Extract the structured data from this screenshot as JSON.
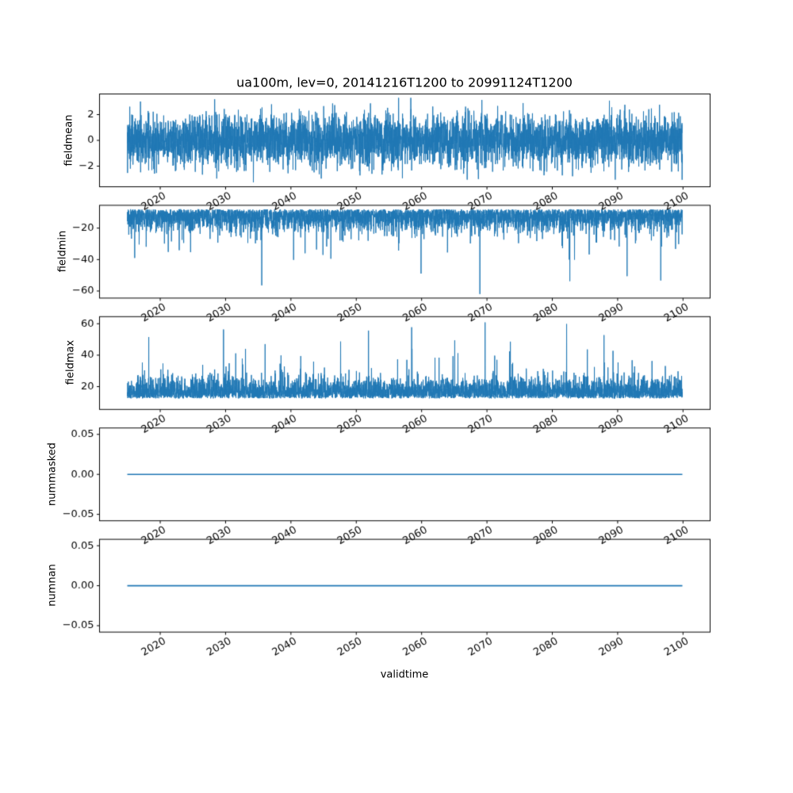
{
  "figure": {
    "background": "#ffffff",
    "line_color": "#1f77b4",
    "frame_color": "#000000",
    "text_color": "#000000"
  },
  "chart_data": {
    "type": "line",
    "title": "ua100m, lev=0, 20141216T1200 to 20991124T1200",
    "xlabel": "validtime",
    "x_range": [
      2014.96,
      2099.9
    ],
    "xlim": [
      2010.71,
      2104.15
    ],
    "xticks": [
      2020,
      2030,
      2040,
      2050,
      2060,
      2070,
      2080,
      2090,
      2100
    ],
    "xtick_labels": [
      "2020",
      "2030",
      "2040",
      "2050",
      "2060",
      "2070",
      "2080",
      "2090",
      "2100"
    ],
    "xtick_rotation": 30,
    "n_points": 4500,
    "legend": "none",
    "grid": false,
    "subplots": [
      {
        "ylabel": "fieldmean",
        "ylim": [
          -3.6,
          3.6
        ],
        "yticks": [
          -2,
          0,
          2
        ],
        "ytick_labels": [
          "−2",
          "0",
          "2"
        ],
        "series": {
          "kind": "gaussian",
          "mean": 0,
          "std": 1.0,
          "clip": [
            -3.3,
            3.3
          ]
        }
      },
      {
        "ylabel": "fieldmin",
        "ylim": [
          -64.5,
          -5.5
        ],
        "yticks": [
          -60,
          -40,
          -20
        ],
        "ytick_labels": [
          "−60",
          "−40",
          "−20"
        ],
        "series": {
          "kind": "spiky-down",
          "base": -8,
          "scale": 6.5,
          "spike_prob": 0.015,
          "spike_range": [
            8,
            26
          ],
          "deep_prob": 0.0012,
          "deep_range": [
            34,
            54
          ],
          "clip": [
            -62,
            -6.8
          ]
        }
      },
      {
        "ylabel": "fieldmax",
        "ylim": [
          5.5,
          64.5
        ],
        "yticks": [
          20,
          40,
          60
        ],
        "ytick_labels": [
          "20",
          "40",
          "60"
        ],
        "series": {
          "kind": "spiky-up",
          "base": 12.5,
          "scale": 6.0,
          "spike_prob": 0.015,
          "spike_range": [
            8,
            26
          ],
          "deep_prob": 0.0012,
          "deep_range": [
            34,
            50
          ],
          "clip": [
            7,
            62
          ]
        }
      },
      {
        "ylabel": "nummasked",
        "ylim": [
          -0.058,
          0.058
        ],
        "yticks": [
          -0.05,
          0,
          0.05
        ],
        "ytick_labels": [
          "−0.05",
          "0.00",
          "0.05"
        ],
        "series": {
          "kind": "constant",
          "value": 0
        }
      },
      {
        "ylabel": "numnan",
        "ylim": [
          -0.058,
          0.058
        ],
        "yticks": [
          -0.05,
          0,
          0.05
        ],
        "ytick_labels": [
          "−0.05",
          "0.00",
          "0.05"
        ],
        "series": {
          "kind": "constant",
          "value": 0
        }
      }
    ]
  }
}
